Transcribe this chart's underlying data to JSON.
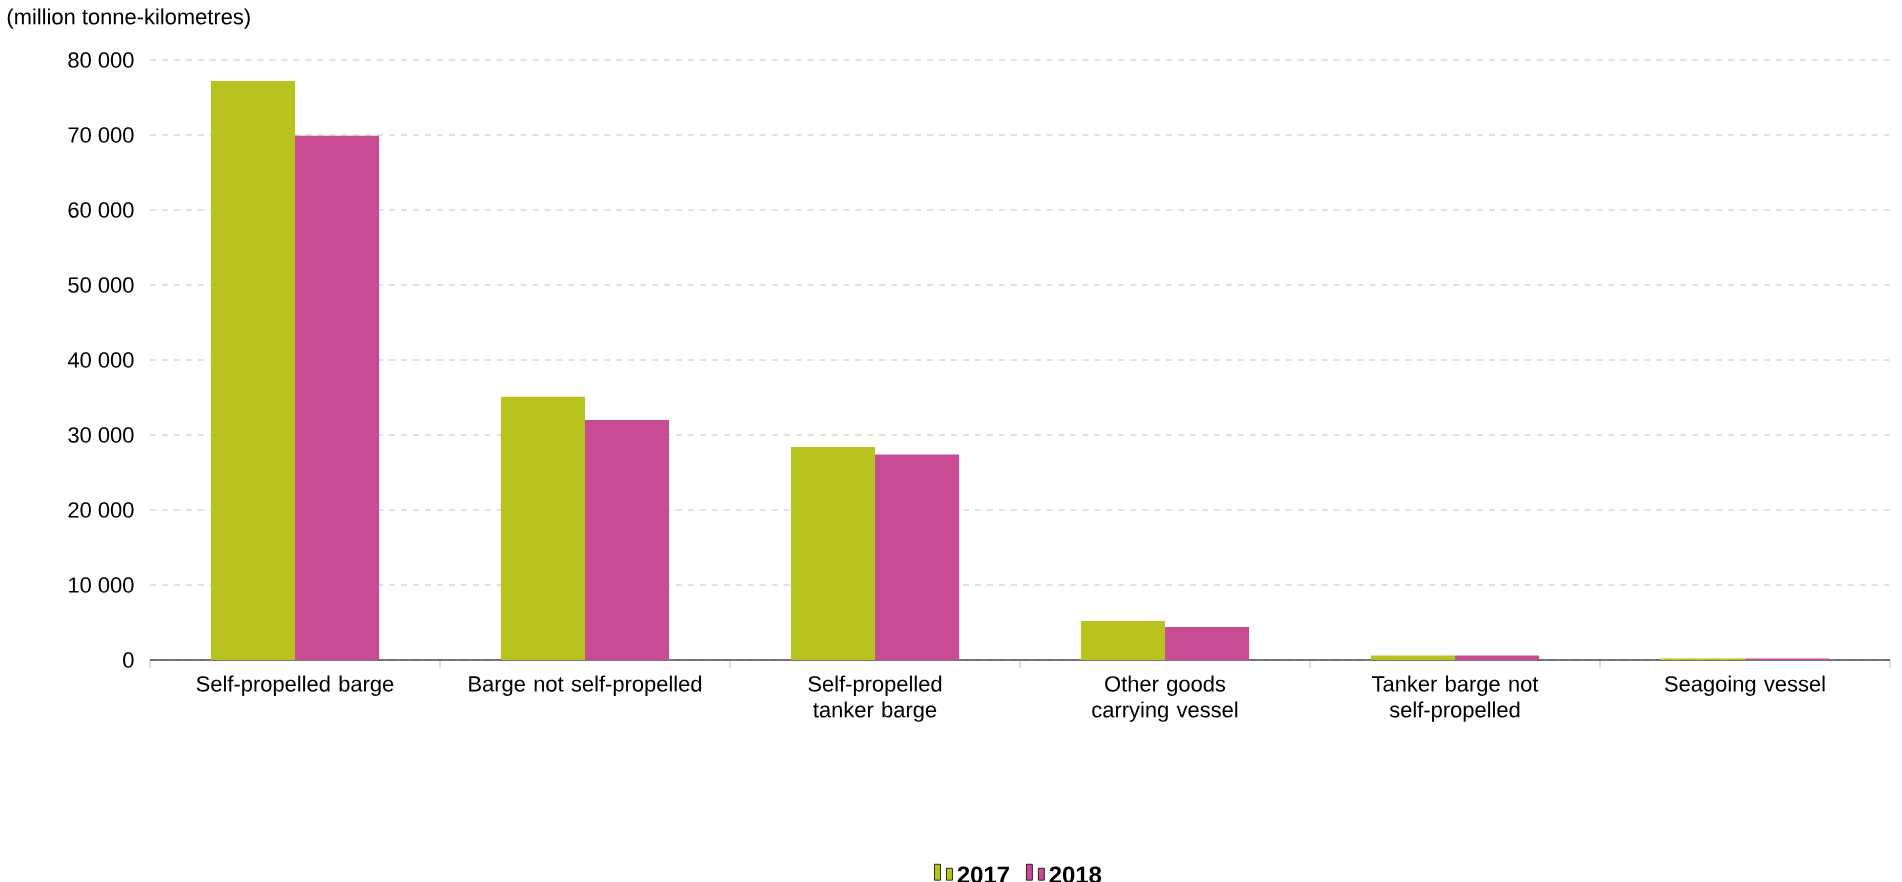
{
  "chart_data": {
    "type": "bar",
    "ylabel": "(million tonne-kilometres)",
    "categories": [
      "Self-propelled barge",
      "Barge not self-propelled",
      "Self-propelled tanker barge",
      "Other goods carrying vessel",
      "Tanker barge not self-propelled",
      "Seagoing vessel"
    ],
    "series": [
      {
        "name": "2017",
        "color": "#b9c31f",
        "values": [
          77200,
          35100,
          28400,
          5200,
          600,
          200
        ]
      },
      {
        "name": "2018",
        "color": "#c84c94",
        "values": [
          69900,
          32000,
          27400,
          4400,
          600,
          200
        ]
      }
    ],
    "ylim": [
      0,
      80000
    ],
    "yticks": [
      {
        "value": 0,
        "label": "0"
      },
      {
        "value": 10000,
        "label": "10 000"
      },
      {
        "value": 20000,
        "label": "20 000"
      },
      {
        "value": 30000,
        "label": "30 000"
      },
      {
        "value": 40000,
        "label": "40 000"
      },
      {
        "value": 50000,
        "label": "50 000"
      },
      {
        "value": 60000,
        "label": "60 000"
      },
      {
        "value": 70000,
        "label": "70 000"
      },
      {
        "value": 80000,
        "label": "80 000"
      }
    ],
    "grid": "y",
    "legend": "bottom"
  }
}
